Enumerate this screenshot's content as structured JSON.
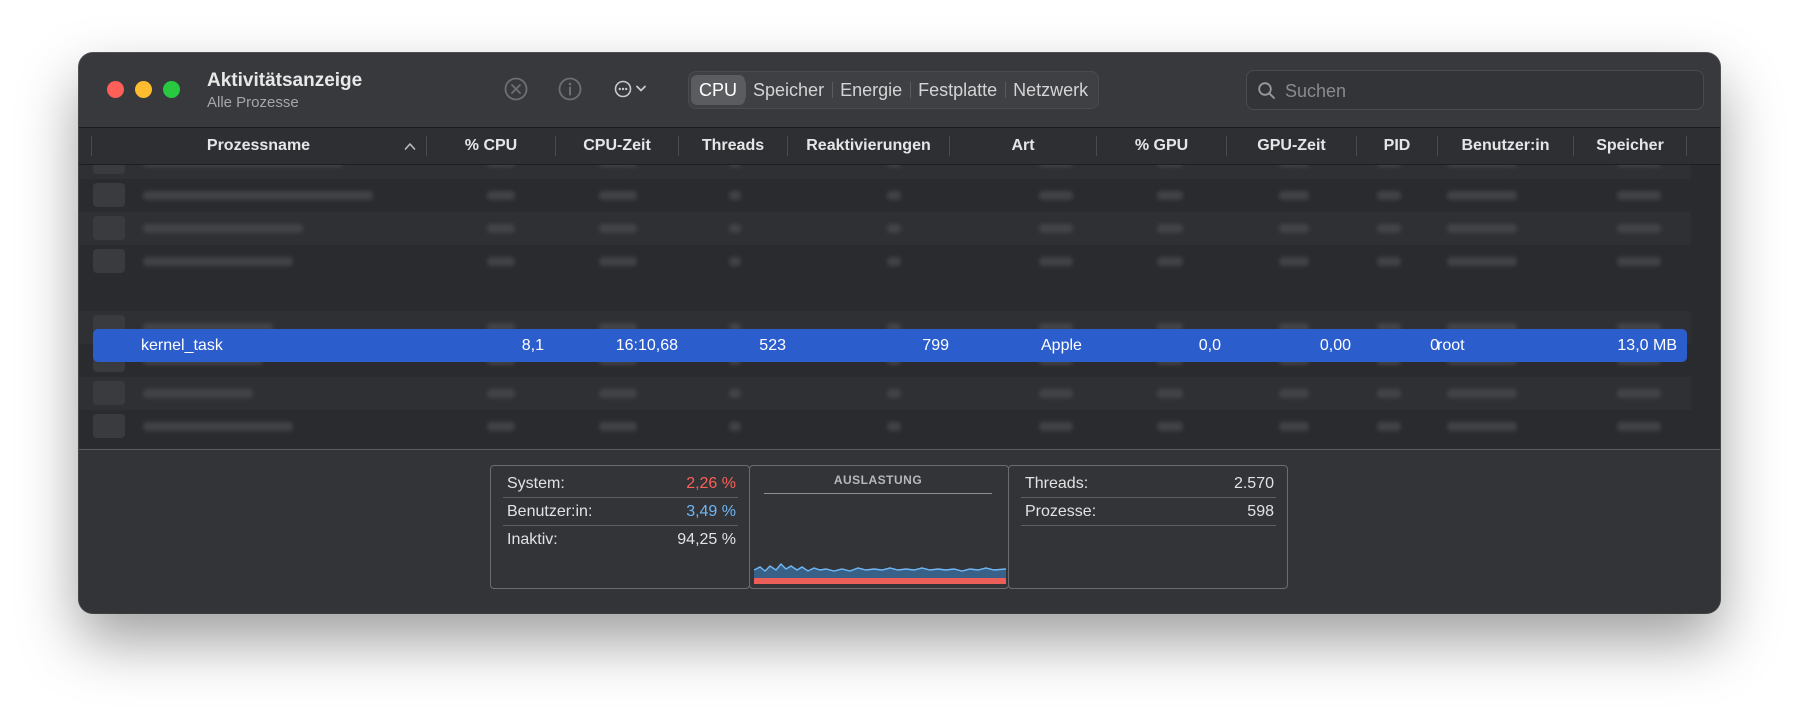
{
  "window": {
    "title": "Aktivitätsanzeige",
    "subtitle": "Alle Prozesse"
  },
  "toolbar": {
    "stop_icon": "stop-process-icon",
    "info_icon": "info-icon",
    "more_icon": "ellipsis-circle-icon"
  },
  "tabs": [
    {
      "label": "CPU",
      "active": true
    },
    {
      "label": "Speicher",
      "active": false
    },
    {
      "label": "Energie",
      "active": false
    },
    {
      "label": "Festplatte",
      "active": false
    },
    {
      "label": "Netzwerk",
      "active": false
    }
  ],
  "search": {
    "placeholder": "Suchen",
    "value": ""
  },
  "columns": [
    "Prozessname",
    "% CPU",
    "CPU-Zeit",
    "Threads",
    "Reaktivierungen",
    "Art",
    "% GPU",
    "GPU-Zeit",
    "PID",
    "Benutzer:in",
    "Speicher"
  ],
  "selected_process": {
    "name": "kernel_task",
    "cpu": "8,1",
    "cpu_time": "16:10,68",
    "threads": "523",
    "wakeups": "799",
    "kind": "Apple",
    "gpu": "0,0",
    "gpu_time": "0,00",
    "pid": "0",
    "user": "root",
    "memory": "13,0 MB"
  },
  "stats": {
    "system_label": "System:",
    "system_value": "2,26 %",
    "user_label": "Benutzer:in:",
    "user_value": "3,49 %",
    "idle_label": "Inaktiv:",
    "idle_value": "94,25 %",
    "chart_title": "AUSLASTUNG",
    "threads_label": "Threads:",
    "threads_value": "2.570",
    "processes_label": "Prozesse:",
    "processes_value": "598"
  },
  "colors": {
    "system": "#ff5f57",
    "user": "#6fb7f5",
    "selection": "#2c5dcd"
  }
}
